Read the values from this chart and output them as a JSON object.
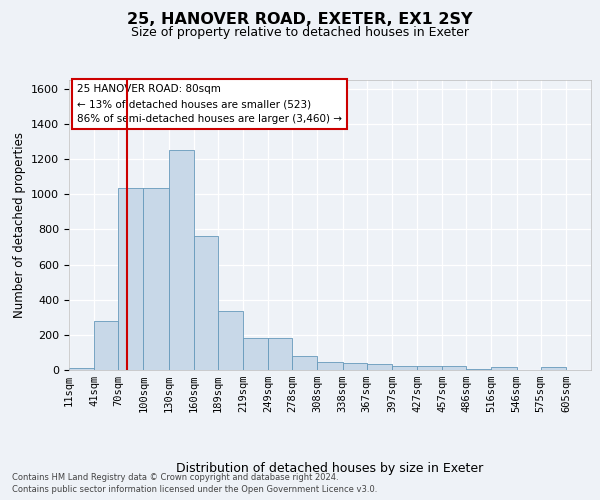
{
  "title_line1": "25, HANOVER ROAD, EXETER, EX1 2SY",
  "title_line2": "Size of property relative to detached houses in Exeter",
  "xlabel": "Distribution of detached houses by size in Exeter",
  "ylabel": "Number of detached properties",
  "bar_color": "#c8d8e8",
  "bar_edgecolor": "#6699bb",
  "vline_x": 80,
  "vline_color": "#cc0000",
  "categories": [
    "11sqm",
    "41sqm",
    "70sqm",
    "100sqm",
    "130sqm",
    "160sqm",
    "189sqm",
    "219sqm",
    "249sqm",
    "278sqm",
    "308sqm",
    "338sqm",
    "367sqm",
    "397sqm",
    "427sqm",
    "457sqm",
    "486sqm",
    "516sqm",
    "546sqm",
    "575sqm",
    "605sqm"
  ],
  "bin_starts": [
    11,
    41,
    70,
    100,
    130,
    160,
    189,
    219,
    249,
    278,
    308,
    338,
    367,
    397,
    427,
    457,
    486,
    516,
    546,
    575,
    605
  ],
  "values": [
    10,
    280,
    1035,
    1035,
    1250,
    760,
    335,
    180,
    180,
    80,
    45,
    40,
    35,
    25,
    20,
    20,
    5,
    15,
    0,
    15,
    0
  ],
  "ylim": [
    0,
    1650
  ],
  "yticks": [
    0,
    200,
    400,
    600,
    800,
    1000,
    1200,
    1400,
    1600
  ],
  "annotation_line1": "25 HANOVER ROAD: 80sqm",
  "annotation_line2": "← 13% of detached houses are smaller (523)",
  "annotation_line3": "86% of semi-detached houses are larger (3,460) →",
  "annotation_box_facecolor": "#ffffff",
  "annotation_box_edgecolor": "#cc0000",
  "footer_line1": "Contains HM Land Registry data © Crown copyright and database right 2024.",
  "footer_line2": "Contains public sector information licensed under the Open Government Licence v3.0.",
  "bg_color": "#eef2f7",
  "grid_color": "#ffffff"
}
